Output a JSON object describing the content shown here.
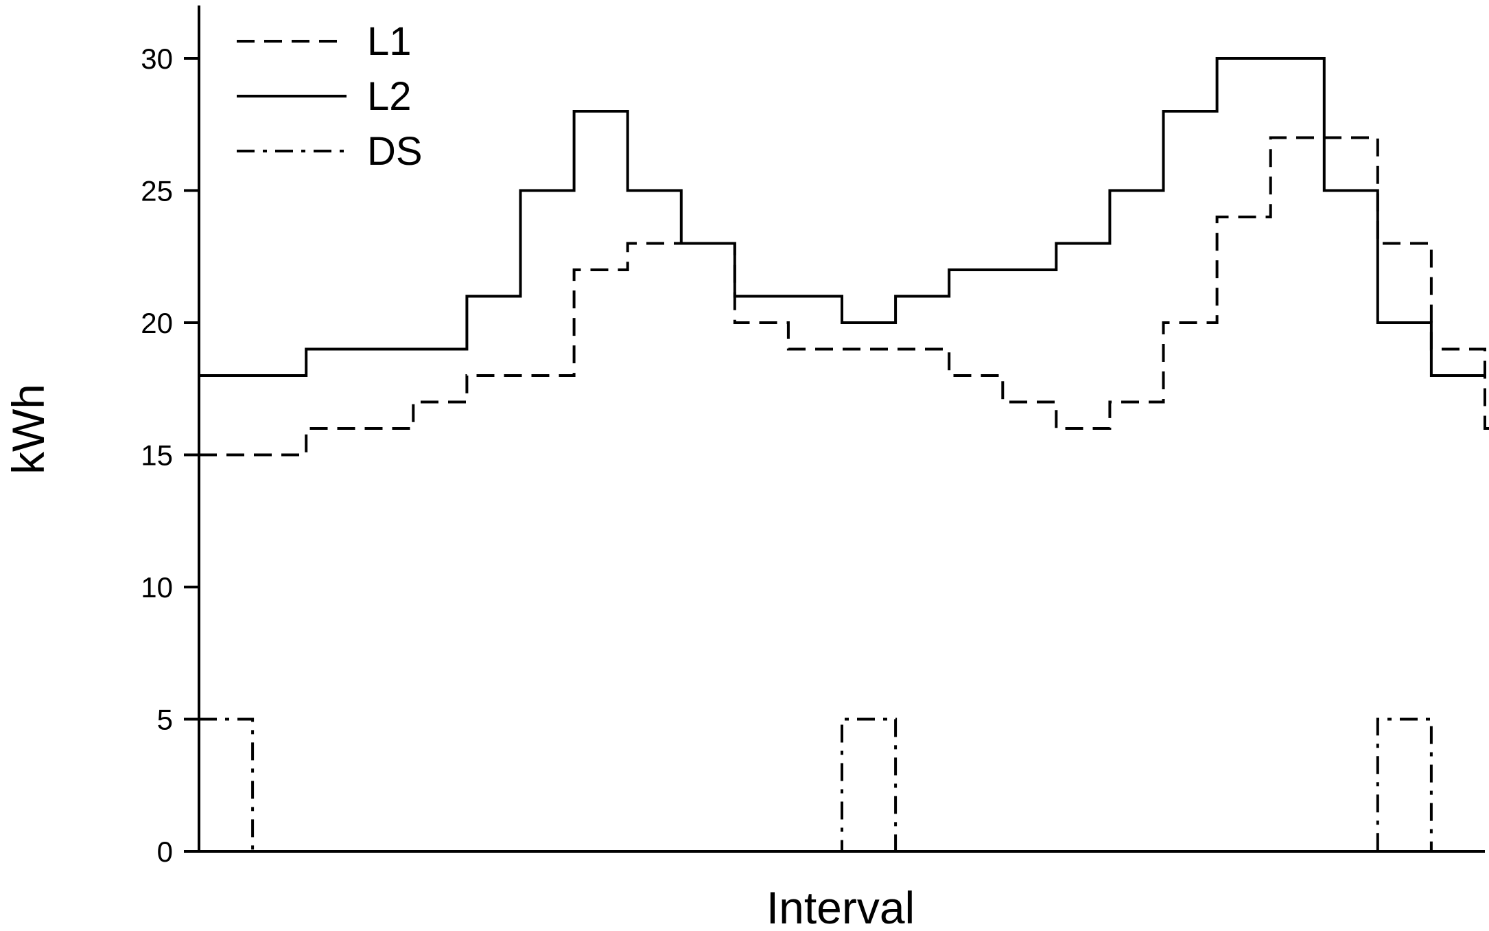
{
  "chart_data": {
    "type": "line",
    "step": true,
    "xlabel": "Interval",
    "ylabel": "kWh",
    "ylim": [
      0,
      32
    ],
    "yticks": [
      0,
      5,
      10,
      15,
      20,
      25,
      30
    ],
    "xlim": [
      0,
      24
    ],
    "x_tick_labels": false,
    "grid": false,
    "legend": "top-left",
    "series": [
      {
        "name": "L1",
        "line_style": "dashed",
        "color": "#000000",
        "values": [
          15,
          15,
          16,
          16,
          17,
          18,
          18,
          22,
          23,
          23,
          20,
          19,
          19,
          19,
          18,
          17,
          16,
          17,
          20,
          24,
          27,
          27,
          23,
          19,
          16
        ]
      },
      {
        "name": "L2",
        "line_style": "solid",
        "color": "#000000",
        "values": [
          18,
          18,
          19,
          19,
          19,
          21,
          25,
          28,
          25,
          23,
          21,
          21,
          20,
          21,
          22,
          22,
          23,
          25,
          28,
          30,
          30,
          25,
          20,
          18
        ]
      },
      {
        "name": "DS",
        "line_style": "dash-dot",
        "color": "#000000",
        "values": [
          5,
          0,
          0,
          0,
          0,
          0,
          0,
          0,
          0,
          0,
          0,
          0,
          5,
          0,
          0,
          0,
          0,
          0,
          0,
          0,
          0,
          0,
          5,
          0
        ]
      }
    ]
  }
}
